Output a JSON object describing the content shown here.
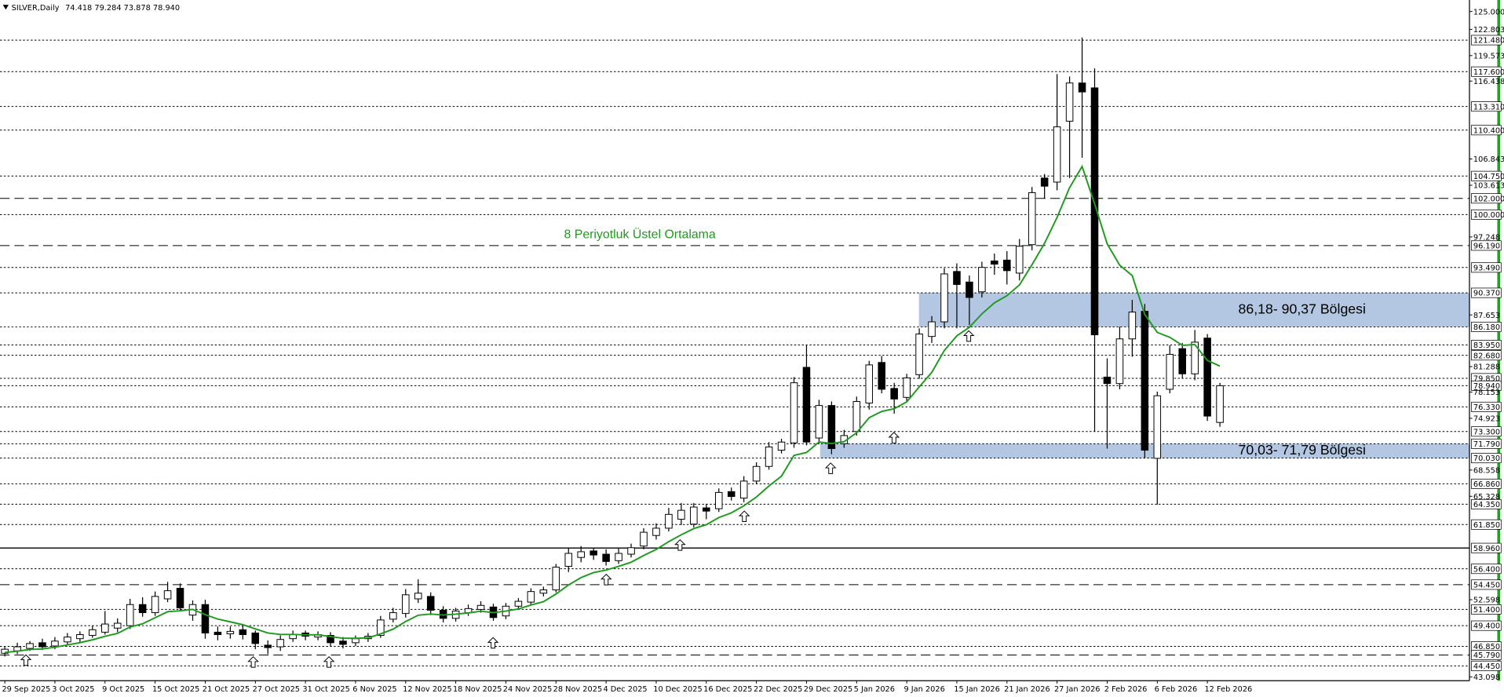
{
  "chart_data": {
    "type": "candlestick",
    "header": {
      "symbol": "SILVER,Daily",
      "quote": "74.418 79.284 73.878 78.940"
    },
    "categories": [
      "29 Sep 2025",
      null,
      null,
      null,
      "3 Oct 2025",
      null,
      null,
      null,
      "9 Oct 2025",
      null,
      null,
      null,
      "15 Oct 2025",
      null,
      null,
      null,
      "21 Oct 2025",
      null,
      null,
      null,
      "27 Oct 2025",
      null,
      null,
      null,
      "31 Oct 2025",
      null,
      null,
      null,
      "6 Nov 2025",
      null,
      null,
      null,
      "12 Nov 2025",
      null,
      null,
      null,
      "18 Nov 2025",
      null,
      null,
      null,
      "24 Nov 2025",
      null,
      null,
      null,
      "28 Nov 2025",
      null,
      null,
      null,
      "4 Dec 2025",
      null,
      null,
      null,
      "10 Dec 2025",
      null,
      null,
      null,
      "16 Dec 2025",
      null,
      null,
      null,
      "22 Dec 2025",
      null,
      null,
      null,
      "29 Dec 2025",
      null,
      null,
      null,
      "5 Jan 2026",
      null,
      null,
      null,
      "9 Jan 2026",
      null,
      null,
      null,
      "15 Jan 2026",
      null,
      null,
      null,
      "21 Jan 2026",
      null,
      null,
      null,
      "27 Jan 2026",
      null,
      null,
      null,
      "2 Feb 2026",
      null,
      null,
      null,
      "6 Feb 2026",
      null,
      null,
      null,
      "12 Feb 2026",
      null
    ],
    "open": [
      46.0,
      46.3,
      46.6,
      47.3,
      46.9,
      47.4,
      47.8,
      48.2,
      48.6,
      49.1,
      49.4,
      52.0,
      51.0,
      52.7,
      54.0,
      50.7,
      52.0,
      48.6,
      48.4,
      48.9,
      48.5,
      47.0,
      46.8,
      47.8,
      48.5,
      48.0,
      48.2,
      47.5,
      47.3,
      47.8,
      48.2,
      50.2,
      50.9,
      52.7,
      53.0,
      51.3,
      50.3,
      51.0,
      51.4,
      51.7,
      50.6,
      51.8,
      52.3,
      53.4,
      53.8,
      56.7,
      57.8,
      58.6,
      58.2,
      57.4,
      58.2,
      59.2,
      60.5,
      61.4,
      62.5,
      61.9,
      63.9,
      63.8,
      65.9,
      65.1,
      67.2,
      69.0,
      71.0,
      71.9,
      81.2,
      72.5,
      76.5,
      71.8,
      73.3,
      76.8,
      81.8,
      78.6,
      77.5,
      80.3,
      85.0,
      86.8,
      93.0,
      91.7,
      90.5,
      94.3,
      94.4,
      92.8,
      96.3,
      104.5,
      104.0,
      111.5,
      116.2,
      115.6,
      80.0,
      79.2,
      84.7,
      88.1,
      70.0,
      78.5,
      83.5,
      80.4,
      84.8,
      74.418
    ],
    "high": [
      46.9,
      47.3,
      47.5,
      47.8,
      48.0,
      48.5,
      48.7,
      49.4,
      51.2,
      50.3,
      52.7,
      52.9,
      53.6,
      54.8,
      54.6,
      52.5,
      52.6,
      49.3,
      49.3,
      49.5,
      48.8,
      47.6,
      48.2,
      48.8,
      48.8,
      48.7,
      48.6,
      48.0,
      48.2,
      48.5,
      50.6,
      51.6,
      53.9,
      55.1,
      53.5,
      51.8,
      51.6,
      52.0,
      52.4,
      52.1,
      52.2,
      52.8,
      54.0,
      54.2,
      57.0,
      59.0,
      59.2,
      59.0,
      58.8,
      58.9,
      59.5,
      61.4,
      62.0,
      63.9,
      64.5,
      64.5,
      64.4,
      66.3,
      66.4,
      67.8,
      69.5,
      72.0,
      72.4,
      80.0,
      83.9,
      77.2,
      77.0,
      73.5,
      77.6,
      82.0,
      82.6,
      79.3,
      80.4,
      86.0,
      87.5,
      93.4,
      94.0,
      92.5,
      94.2,
      95.2,
      95.5,
      97.0,
      103.4,
      105.0,
      117.3,
      117.0,
      121.8,
      118.0,
      82.3,
      86.2,
      89.5,
      89.0,
      78.2,
      83.9,
      84.2,
      85.8,
      85.3,
      79.284
    ],
    "low": [
      45.6,
      45.9,
      46.3,
      46.4,
      46.5,
      47.0,
      47.4,
      47.9,
      48.3,
      48.6,
      49.0,
      50.5,
      50.6,
      52.3,
      51.2,
      50.0,
      47.8,
      47.6,
      47.8,
      47.7,
      46.5,
      45.9,
      46.3,
      47.4,
      47.6,
      47.6,
      46.8,
      46.6,
      46.9,
      47.4,
      47.9,
      49.8,
      50.4,
      52.2,
      50.7,
      49.8,
      49.9,
      50.6,
      51.0,
      50.0,
      50.2,
      51.4,
      52.0,
      53.0,
      53.5,
      56.0,
      57.2,
      57.5,
      56.8,
      57.0,
      57.8,
      58.8,
      60.0,
      61.0,
      61.8,
      61.5,
      62.5,
      63.4,
      64.8,
      64.6,
      66.8,
      68.6,
      70.6,
      71.3,
      71.6,
      71.8,
      70.5,
      71.3,
      72.8,
      76.0,
      78.0,
      75.5,
      77.0,
      79.8,
      84.2,
      86.0,
      86.0,
      86.4,
      89.8,
      92.6,
      91.4,
      91.9,
      95.6,
      102.0,
      103.0,
      104.5,
      107.0,
      73.3,
      71.2,
      78.5,
      82.5,
      70.0,
      64.3,
      78.0,
      79.8,
      79.6,
      74.6,
      73.878
    ],
    "close": [
      46.5,
      46.8,
      47.2,
      46.8,
      47.5,
      48.0,
      48.3,
      48.9,
      49.6,
      49.7,
      52.0,
      51.0,
      53.0,
      53.7,
      51.6,
      52.0,
      48.5,
      48.3,
      48.7,
      48.3,
      47.2,
      46.7,
      47.7,
      48.3,
      48.1,
      48.3,
      47.3,
      47.1,
      47.8,
      48.1,
      50.1,
      51.0,
      53.2,
      53.4,
      51.3,
      50.3,
      51.2,
      51.5,
      51.9,
      50.4,
      51.8,
      52.4,
      53.6,
      53.8,
      56.6,
      58.3,
      58.5,
      58.1,
      57.3,
      58.3,
      59.0,
      60.9,
      61.4,
      63.1,
      63.6,
      64.0,
      63.5,
      65.8,
      65.3,
      67.2,
      69.0,
      71.4,
      72.0,
      79.3,
      72.0,
      76.5,
      71.2,
      72.8,
      77.0,
      81.5,
      78.5,
      77.3,
      79.9,
      85.3,
      86.8,
      92.7,
      91.4,
      89.8,
      93.5,
      93.9,
      93.1,
      96.1,
      102.7,
      103.5,
      110.8,
      116.2,
      115.1,
      85.2,
      79.2,
      84.7,
      88.0,
      71.0,
      77.7,
      82.8,
      80.4,
      84.3,
      75.2,
      78.94
    ],
    "up_color": "#ffffff",
    "down_color": "#000000",
    "series": [
      {
        "name": "8 Periyotluk Üstel Ortalama",
        "color": "#1f9a1f",
        "values": [
          46.1,
          46.26,
          46.47,
          46.54,
          46.75,
          47.03,
          47.31,
          47.66,
          48.09,
          48.45,
          49.24,
          49.63,
          50.38,
          51.12,
          51.23,
          51.4,
          50.76,
          50.21,
          49.87,
          49.52,
          49.01,
          48.5,
          48.32,
          48.32,
          48.27,
          48.28,
          48.06,
          47.85,
          47.84,
          47.9,
          48.39,
          48.97,
          49.91,
          50.69,
          50.83,
          50.71,
          50.82,
          50.97,
          51.18,
          51.01,
          51.19,
          51.46,
          51.94,
          52.35,
          53.3,
          54.41,
          55.32,
          55.94,
          56.24,
          56.7,
          57.21,
          58.03,
          58.78,
          59.74,
          60.59,
          61.35,
          61.83,
          62.71,
          63.29,
          64.16,
          65.23,
          66.6,
          67.8,
          70.36,
          70.72,
          72.01,
          71.83,
          72.05,
          73.14,
          75.0,
          75.77,
          76.11,
          76.95,
          78.8,
          80.58,
          83.27,
          85.08,
          86.13,
          87.78,
          89.14,
          90.02,
          91.35,
          93.83,
          96.46,
          99.65,
          103.32,
          105.92,
          101.32,
          96.41,
          93.77,
          92.49,
          87.72,
          85.5,
          84.9,
          83.91,
          84.0,
          82.05,
          81.35
        ]
      }
    ],
    "ylim": [
      43.098,
      125
    ],
    "yticks": [
      {
        "value": 125,
        "label": "125.000"
      },
      {
        "value": 122.803,
        "label": "122.803"
      },
      {
        "value": 119.573,
        "label": "119.573"
      },
      {
        "value": 116.438,
        "label": "116.438"
      },
      {
        "value": 106.843,
        "label": "106.843"
      },
      {
        "value": 103.613,
        "label": "103.613"
      },
      {
        "value": 97.248,
        "label": "97.248"
      },
      {
        "value": 87.653,
        "label": "87.653"
      },
      {
        "value": 81.288,
        "label": "81.288"
      },
      {
        "value": 78.153,
        "label": "78.153"
      },
      {
        "value": 74.923,
        "label": "74.923"
      },
      {
        "value": 68.558,
        "label": "68.558"
      },
      {
        "value": 65.328,
        "label": "65.328"
      },
      {
        "value": 52.598,
        "label": "52.598"
      },
      {
        "value": 43.098,
        "label": "43.098"
      }
    ],
    "levels": [
      {
        "value": 121.48,
        "label": "121.480",
        "style": "dotted"
      },
      {
        "value": 117.6,
        "label": "117.600",
        "style": "dotted"
      },
      {
        "value": 113.31,
        "label": "113.310",
        "style": "dotted"
      },
      {
        "value": 110.4,
        "label": "110.400",
        "style": "dotted"
      },
      {
        "value": 104.75,
        "label": "104.750",
        "style": "dotted"
      },
      {
        "value": 102,
        "label": "102.000",
        "style": "dashed"
      },
      {
        "value": 100,
        "label": "100.000",
        "style": "dotted"
      },
      {
        "value": 96.19,
        "label": "96.190",
        "style": "dashed"
      },
      {
        "value": 93.49,
        "label": "93.490",
        "style": "dotted"
      },
      {
        "value": 90.37,
        "label": "90.370",
        "style": "dotted"
      },
      {
        "value": 86.18,
        "label": "86.180",
        "style": "dotted"
      },
      {
        "value": 83.95,
        "label": "83.950",
        "style": "dotted"
      },
      {
        "value": 82.68,
        "label": "82.680",
        "style": "dotted"
      },
      {
        "value": 79.85,
        "label": "79.850",
        "style": "dotted"
      },
      {
        "value": 78.94,
        "label": "78.940",
        "style": "dotted"
      },
      {
        "value": 76.33,
        "label": "76.330",
        "style": "dotted"
      },
      {
        "value": 73.3,
        "label": "73.300",
        "style": "dotted"
      },
      {
        "value": 71.79,
        "label": "71.790",
        "style": "dotted"
      },
      {
        "value": 70.03,
        "label": "70.030",
        "style": "dotted"
      },
      {
        "value": 66.86,
        "label": "66.860",
        "style": "dotted"
      },
      {
        "value": 64.35,
        "label": "64.350",
        "style": "dotted"
      },
      {
        "value": 61.85,
        "label": "61.850",
        "style": "dotted"
      },
      {
        "value": 58.96,
        "label": "58.960",
        "style": "solid"
      },
      {
        "value": 56.4,
        "label": "56.400",
        "style": "dotted"
      },
      {
        "value": 54.45,
        "label": "54.450",
        "style": "dashed"
      },
      {
        "value": 51.4,
        "label": "51.400",
        "style": "dotted"
      },
      {
        "value": 49.4,
        "label": "49.400",
        "style": "dotted"
      },
      {
        "value": 46.85,
        "label": "46.850",
        "style": "dotted"
      },
      {
        "value": 45.79,
        "label": "45.790",
        "style": "dashed"
      },
      {
        "value": 44.45,
        "label": "44.450",
        "style": "dotted"
      }
    ],
    "zones": [
      {
        "low": 86.18,
        "high": 90.37,
        "label": "86,18- 90,37 Bölgesi",
        "color": "#b3c6e2"
      },
      {
        "low": 70.03,
        "high": 71.79,
        "label": "70,03- 71,79 Bölgesi",
        "color": "#b3c6e2"
      }
    ]
  }
}
